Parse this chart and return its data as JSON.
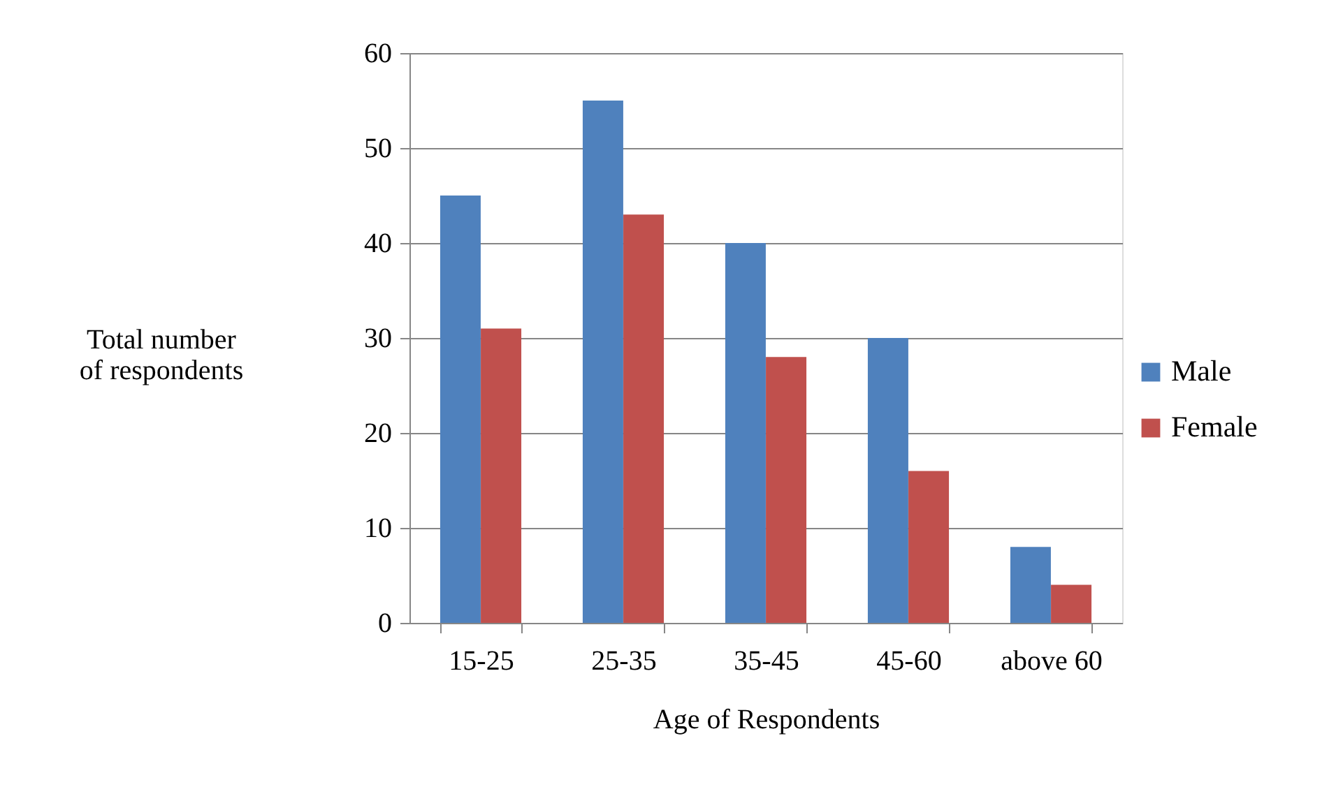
{
  "chart_data": {
    "type": "bar",
    "xlabel": "Age of Respondents",
    "ylabel": "Total number of respondents",
    "categories": [
      "15-25",
      "25-35",
      "35-45",
      "45-60",
      "above 60"
    ],
    "series": [
      {
        "name": "Male",
        "color": "#4f81bd",
        "values": [
          45,
          55,
          40,
          30,
          8
        ]
      },
      {
        "name": "Female",
        "color": "#c0504d",
        "values": [
          31,
          43,
          28,
          16,
          4
        ]
      }
    ],
    "ylim": [
      0,
      60
    ],
    "yticks": [
      0,
      10,
      20,
      30,
      40,
      50,
      60
    ],
    "grid": "y",
    "legend": "right"
  }
}
